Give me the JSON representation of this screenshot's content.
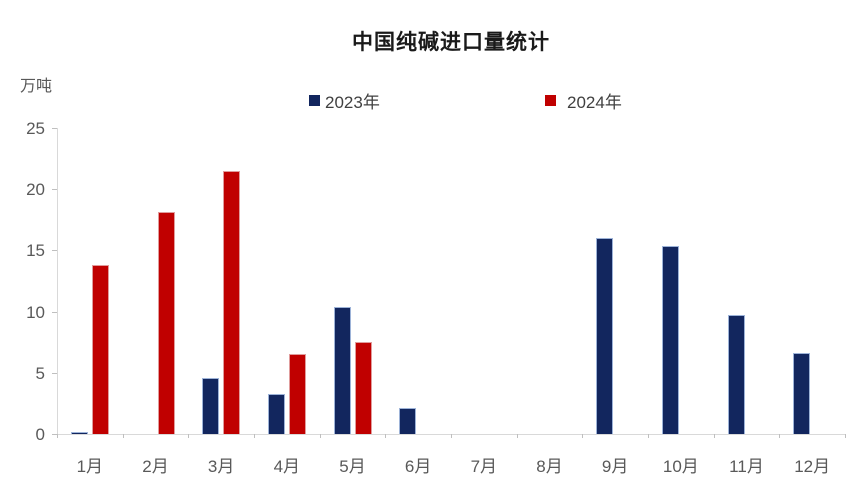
{
  "chart_data": {
    "type": "bar",
    "title": "中国纯碱进口量统计",
    "unit_label": "万吨",
    "xlabel": "",
    "ylabel": "万吨",
    "categories": [
      "1月",
      "2月",
      "3月",
      "4月",
      "5月",
      "6月",
      "7月",
      "8月",
      "9月",
      "10月",
      "11月",
      "12月"
    ],
    "series": [
      {
        "name": "2023年",
        "color": "#12265E",
        "border_color": "#9db3d8",
        "values": [
          0.2,
          0,
          4.6,
          3.3,
          10.4,
          2.1,
          0,
          0,
          16.0,
          15.4,
          9.7,
          6.6
        ]
      },
      {
        "name": "2024年",
        "color": "#C00000",
        "border_color": "#e09c9c",
        "values": [
          13.8,
          18.1,
          21.5,
          6.5,
          7.5,
          0,
          0,
          0,
          0,
          0,
          0,
          0
        ]
      }
    ],
    "ylim": [
      0,
      25
    ],
    "yticks": [
      0,
      5,
      10,
      15,
      20,
      25
    ],
    "grid": false,
    "legend_position": "top"
  }
}
